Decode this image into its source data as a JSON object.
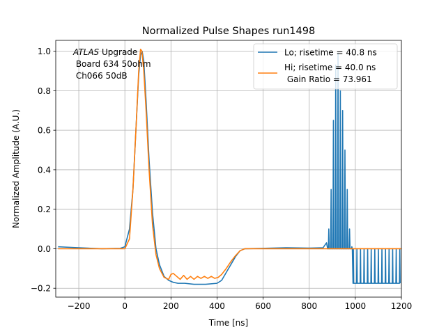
{
  "chart_data": {
    "type": "line",
    "title": "Normalized Pulse Shapes run1498",
    "xlabel": "Time [ns]",
    "ylabel": "Normalized Amplitude (A.U.)",
    "xlim": [
      -300,
      1200
    ],
    "ylim": [
      -0.245,
      1.055
    ],
    "xticks": [
      -200,
      0,
      200,
      400,
      600,
      800,
      1000,
      1200
    ],
    "yticks": [
      -0.2,
      0.0,
      0.2,
      0.4,
      0.6,
      0.8,
      1.0
    ],
    "grid": true,
    "legend_position": "top-right",
    "annotation": {
      "italic_part": "ATLAS",
      "line1_rest": " Upgrade",
      "line2": " Board 634 50ohm",
      "line3": " Ch066 50dB"
    },
    "series": [
      {
        "name": "Lo; risetime = 40.8 ns",
        "color": "#1f77b4",
        "x": [
          -290,
          -200,
          -100,
          -20,
          0,
          20,
          35,
          50,
          60,
          68,
          75,
          82,
          92,
          105,
          120,
          135,
          150,
          170,
          190,
          210,
          230,
          260,
          300,
          350,
          400,
          420,
          440,
          460,
          480,
          500,
          520,
          600,
          700,
          800,
          860,
          875,
          880
        ],
        "y": [
          0.01,
          0.005,
          0.0,
          0.002,
          0.01,
          0.1,
          0.3,
          0.65,
          0.88,
          0.98,
          1.0,
          0.95,
          0.75,
          0.45,
          0.18,
          0.0,
          -0.08,
          -0.14,
          -0.16,
          -0.17,
          -0.175,
          -0.175,
          -0.18,
          -0.18,
          -0.175,
          -0.16,
          -0.12,
          -0.08,
          -0.04,
          -0.01,
          0.0,
          0.002,
          0.005,
          0.003,
          0.005,
          0.03,
          0.0
        ],
        "spikes": {
          "x": [
            885,
            895,
            905,
            915,
            925,
            935,
            945,
            955,
            965,
            975,
            985
          ],
          "peaks": [
            0.1,
            0.3,
            0.65,
            0.93,
            0.99,
            0.8,
            0.7,
            0.5,
            0.3,
            0.1,
            0.01
          ]
        },
        "tail": {
          "x_start": 990,
          "x_end": 1200,
          "spacing": 15.5,
          "low": -0.175,
          "high": 0.0
        }
      },
      {
        "name": "Hi; risetime = 40.0 ns",
        "name_line2": " Gain Ratio = 73.961",
        "color": "#ff7f0e",
        "x": [
          -290,
          -200,
          -100,
          -20,
          0,
          20,
          35,
          50,
          60,
          68,
          74,
          82,
          92,
          105,
          120,
          135,
          150,
          170,
          190,
          200,
          210,
          225,
          240,
          255,
          270,
          285,
          300,
          315,
          330,
          345,
          360,
          375,
          390,
          405,
          420,
          440,
          460,
          480,
          500,
          520,
          540,
          600,
          700,
          800,
          900,
          1000,
          1100,
          1200
        ],
        "y": [
          0.0,
          0.0,
          0.0,
          0.0,
          0.0,
          0.05,
          0.3,
          0.65,
          0.9,
          1.01,
          1.0,
          0.9,
          0.7,
          0.4,
          0.12,
          -0.03,
          -0.1,
          -0.145,
          -0.155,
          -0.13,
          -0.125,
          -0.14,
          -0.155,
          -0.135,
          -0.155,
          -0.14,
          -0.155,
          -0.14,
          -0.15,
          -0.14,
          -0.15,
          -0.14,
          -0.15,
          -0.145,
          -0.13,
          -0.1,
          -0.065,
          -0.035,
          -0.01,
          0.0,
          0.0,
          0.0,
          0.0,
          0.0,
          0.0,
          0.0,
          0.0,
          0.0
        ]
      }
    ]
  }
}
